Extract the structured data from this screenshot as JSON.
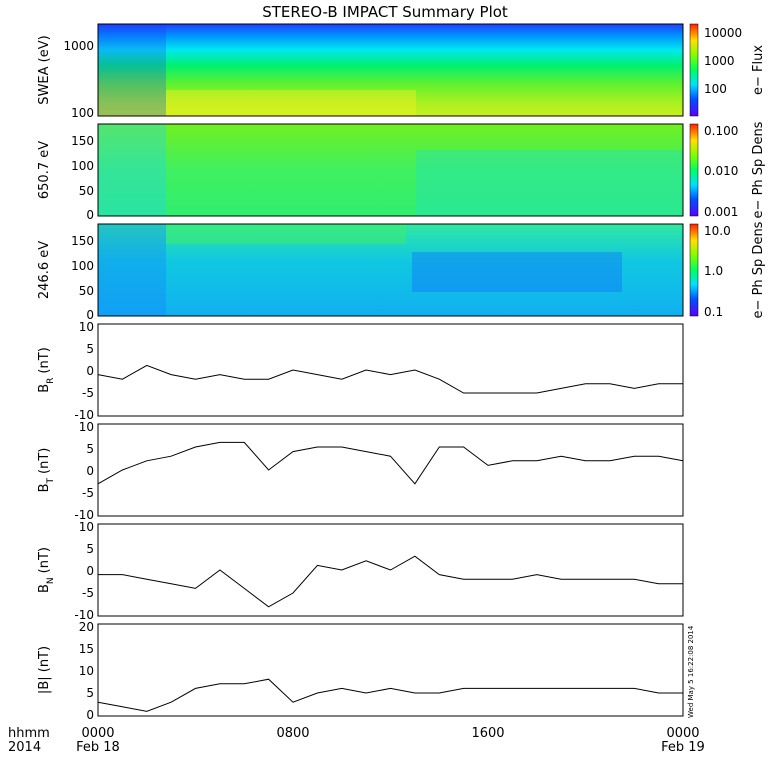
{
  "title": "STEREO-B IMPACT Summary Plot",
  "stamp": "Wed May 5 16:22:08 2014",
  "colors": {
    "line": "#000000",
    "frame": "#000000"
  },
  "chart_data": [
    {
      "type": "heatmap",
      "panel": "swea",
      "ylabel": "SWEA (eV)",
      "yscale": "log",
      "ylim": [
        90,
        2000
      ],
      "yticks": [
        "1000",
        "100"
      ],
      "colorbar": {
        "label": "e− Flux",
        "scale": "log",
        "ticks": [
          "10000",
          "1000",
          "100"
        ]
      },
      "description_values": {
        "high_energy_flux": 30,
        "mid_energy_flux": 1000,
        "low_energy_flux": 5000
      }
    },
    {
      "type": "heatmap",
      "panel": "pad_650",
      "ylabel": "650.7 eV",
      "ylim": [
        0,
        180
      ],
      "yticks": [
        "150",
        "100",
        "50",
        "0"
      ],
      "colorbar": {
        "label": "e− Ph Sp Dens",
        "scale": "log",
        "ticks": [
          "0.100",
          "0.010",
          "0.001"
        ]
      }
    },
    {
      "type": "heatmap",
      "panel": "pad_246",
      "ylabel": "246.6 eV",
      "ylim": [
        0,
        180
      ],
      "yticks": [
        "150",
        "100",
        "50",
        "0"
      ],
      "colorbar": {
        "label": "e− Ph Sp Dens",
        "scale": "log",
        "ticks": [
          "10.0",
          "1.0",
          "0.1"
        ]
      }
    },
    {
      "type": "line",
      "panel": "br",
      "ylabel": "B",
      "ylabel_sub": "R",
      "ylabel_unit": "(nT)",
      "ylim": [
        -10,
        10
      ],
      "yticks": [
        "10",
        "5",
        "0",
        "-5",
        "-10"
      ],
      "x_hours": [
        0,
        1,
        2,
        3,
        4,
        5,
        6,
        7,
        8,
        9,
        10,
        11,
        12,
        13,
        14,
        15,
        16,
        17,
        18,
        19,
        20,
        21,
        22,
        23,
        24
      ],
      "values": [
        -1,
        -2,
        1,
        -1,
        -2,
        -1,
        -2,
        -2,
        0,
        -1,
        -2,
        0,
        -1,
        0,
        -2,
        -5,
        -5,
        -5,
        -5,
        -4,
        -3,
        -3,
        -4,
        -3,
        -3
      ]
    },
    {
      "type": "line",
      "panel": "bt",
      "ylabel": "B",
      "ylabel_sub": "T",
      "ylabel_unit": "(nT)",
      "ylim": [
        -10,
        10
      ],
      "yticks": [
        "10",
        "5",
        "0",
        "-5",
        "-10"
      ],
      "x_hours": [
        0,
        1,
        2,
        3,
        4,
        5,
        6,
        7,
        8,
        9,
        10,
        11,
        12,
        13,
        14,
        15,
        16,
        17,
        18,
        19,
        20,
        21,
        22,
        23,
        24
      ],
      "values": [
        -3,
        0,
        2,
        3,
        5,
        6,
        6,
        0,
        4,
        5,
        5,
        4,
        3,
        -3,
        5,
        5,
        1,
        2,
        2,
        3,
        2,
        2,
        3,
        3,
        2
      ]
    },
    {
      "type": "line",
      "panel": "bn",
      "ylabel": "B",
      "ylabel_sub": "N",
      "ylabel_unit": "(nT)",
      "ylim": [
        -10,
        10
      ],
      "yticks": [
        "10",
        "5",
        "0",
        "-5",
        "-10"
      ],
      "x_hours": [
        0,
        1,
        2,
        3,
        4,
        5,
        6,
        7,
        8,
        9,
        10,
        11,
        12,
        13,
        14,
        15,
        16,
        17,
        18,
        19,
        20,
        21,
        22,
        23,
        24
      ],
      "values": [
        -1,
        -1,
        -2,
        -3,
        -4,
        0,
        -4,
        -8,
        -5,
        1,
        0,
        2,
        0,
        3,
        -1,
        -2,
        -2,
        -2,
        -1,
        -2,
        -2,
        -2,
        -2,
        -3,
        -3
      ]
    },
    {
      "type": "line",
      "panel": "b",
      "ylabel": "|B| (nT)",
      "ylim": [
        0,
        20
      ],
      "yticks": [
        "20",
        "15",
        "10",
        "5",
        "0"
      ],
      "x_hours": [
        0,
        1,
        2,
        3,
        4,
        5,
        6,
        7,
        8,
        9,
        10,
        11,
        12,
        13,
        14,
        15,
        16,
        17,
        18,
        19,
        20,
        21,
        22,
        23,
        24
      ],
      "values": [
        3,
        2,
        1,
        3,
        6,
        7,
        7,
        8,
        3,
        5,
        6,
        5,
        6,
        5,
        5,
        6,
        6,
        6,
        6,
        6,
        6,
        6,
        6,
        5,
        5
      ]
    }
  ],
  "x_axis": {
    "corner_label": "hhmm",
    "year": "2014",
    "ticks": [
      "0000",
      "0800",
      "1600",
      "0000"
    ],
    "dates": [
      "Feb 18",
      "Feb 19"
    ]
  }
}
